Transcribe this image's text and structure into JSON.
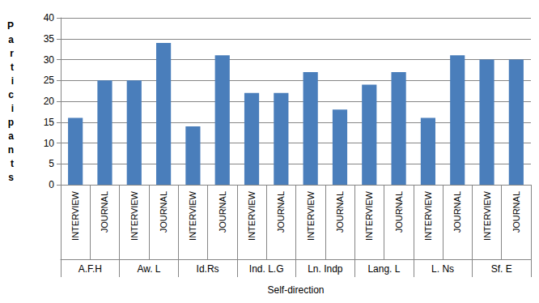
{
  "chart_data": {
    "type": "bar",
    "categories": [
      "INTERVIEW",
      "JOURNAL",
      "INTERVIEW",
      "JOURNAL",
      "INTERVIEW",
      "JOURNAL",
      "INTERVIEW",
      "JOURNAL",
      "INTERVIEW",
      "JOURNAL",
      "INTERVIEW",
      "JOURNAL",
      "INTERVIEW",
      "JOURNAL",
      "INTERVIEW",
      "JOURNAL"
    ],
    "groups": [
      "A.F.H",
      "Aw. L",
      "Id.Rs",
      "Ind. L.G",
      "Ln. Indp",
      "Lang. L",
      "L. Ns",
      "Sf. E"
    ],
    "values": [
      16,
      25,
      25,
      34,
      14,
      31,
      22,
      22,
      27,
      18,
      24,
      27,
      16,
      31,
      30,
      30
    ],
    "color": "#4a7ebb",
    "x_label": "Self-direction",
    "y_label": "Participants",
    "ylim": [
      0,
      40
    ],
    "yticks": [
      0,
      5,
      10,
      15,
      20,
      25,
      30,
      35,
      40
    ],
    "grid": true
  }
}
